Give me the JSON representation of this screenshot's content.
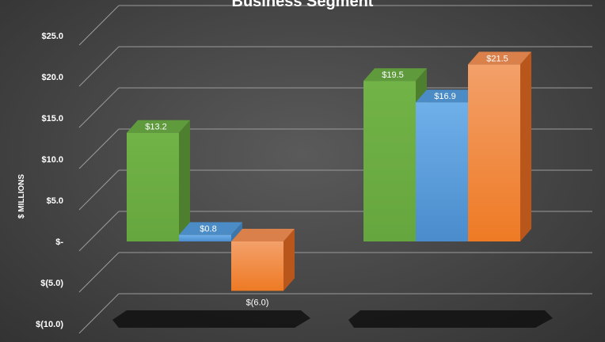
{
  "chart_data": {
    "type": "bar",
    "title": "Business Segment",
    "ylabel": "$ MILLIONS",
    "ylim": [
      -10,
      25
    ],
    "y_ticks": [
      {
        "value": 25,
        "label": "$25.0"
      },
      {
        "value": 20,
        "label": "$20.0"
      },
      {
        "value": 15,
        "label": "$15.0"
      },
      {
        "value": 10,
        "label": "$10.0"
      },
      {
        "value": 5,
        "label": "$5.0"
      },
      {
        "value": 0,
        "label": "$-"
      },
      {
        "value": -5,
        "label": "$(5.0)"
      },
      {
        "value": -10,
        "label": "$(10.0)"
      }
    ],
    "categories": [
      "",
      ""
    ],
    "series": [
      {
        "color": "#70ad47",
        "values": [
          13.2,
          19.5
        ],
        "labels": [
          "$13.2",
          "$19.5"
        ]
      },
      {
        "color": "#5b9bd5",
        "values": [
          0.8,
          16.9
        ],
        "labels": [
          "$0.8",
          "$16.9"
        ]
      },
      {
        "color": "#ed7d31",
        "values": [
          -6.0,
          21.5
        ],
        "labels": [
          "$(6.0)",
          "$21.5"
        ]
      }
    ],
    "grid": true,
    "style": "3d-clustered-column"
  }
}
